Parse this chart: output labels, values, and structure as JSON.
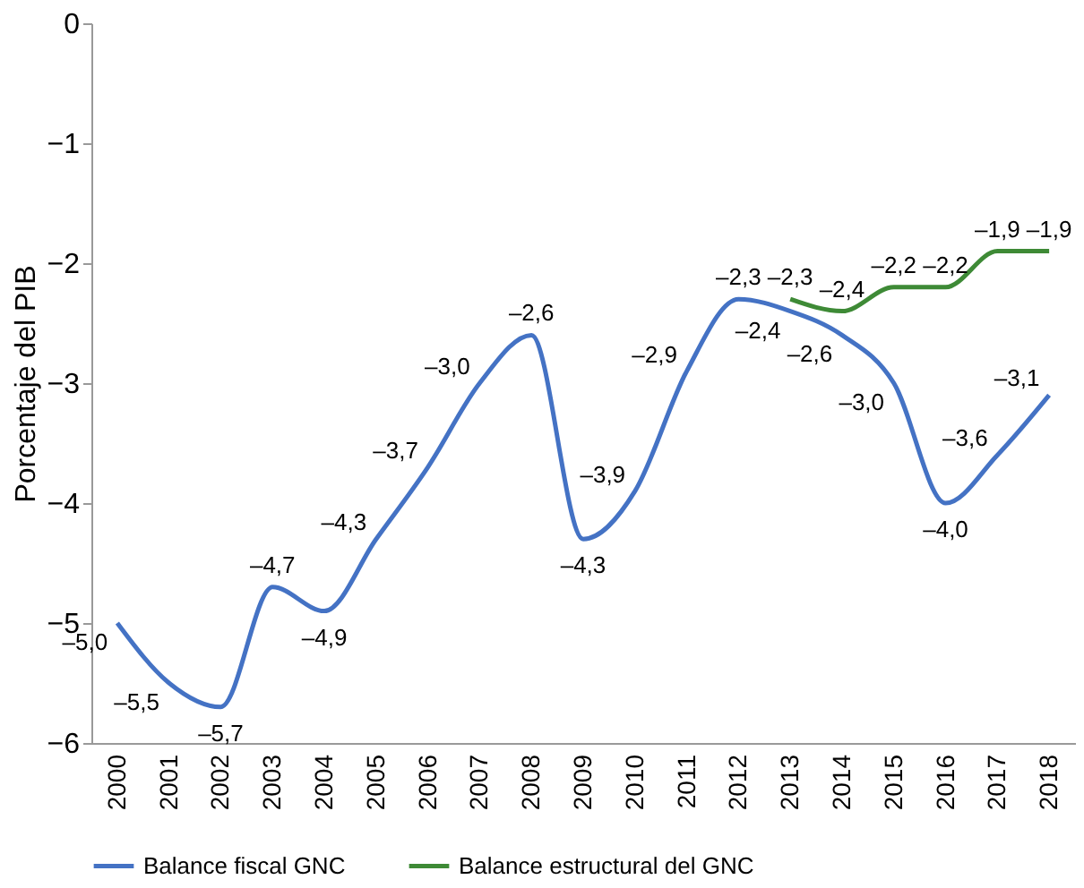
{
  "chart_data": {
    "type": "line",
    "ylabel": "Porcentaje del PIB",
    "categories": [
      "2000",
      "2001",
      "2002",
      "2003",
      "2004",
      "2005",
      "2006",
      "2007",
      "2008",
      "2009",
      "2010",
      "2011",
      "2012",
      "2013",
      "2014",
      "2015",
      "2016",
      "2017",
      "2018"
    ],
    "series": [
      {
        "name": "Balance fiscal GNC",
        "color": "#4472c4",
        "values": [
          -5.0,
          -5.5,
          -5.7,
          -4.7,
          -4.9,
          -4.3,
          -3.7,
          -3.0,
          -2.6,
          -4.3,
          -3.9,
          -2.9,
          -2.3,
          -2.4,
          -2.6,
          -3.0,
          -4.0,
          -3.6,
          -3.1
        ],
        "value_labels": [
          "–5,0",
          "–5,5",
          "–5,7",
          "–4,7",
          "–4,9",
          "–4,3",
          "–3,7",
          "–3,0",
          "–2,6",
          "–4,3",
          "–3,9",
          "–2,9",
          "–2,3",
          "–2,4",
          "–2,6",
          "–3,0",
          "–4,0",
          "–3,6",
          "–3,1"
        ]
      },
      {
        "name": "Balance estructural del GNC",
        "color": "#3e8a36",
        "values": [
          null,
          null,
          null,
          null,
          null,
          null,
          null,
          null,
          null,
          null,
          null,
          null,
          null,
          -2.3,
          -2.4,
          -2.2,
          -2.2,
          -1.9,
          -1.9
        ],
        "value_labels": [
          null,
          null,
          null,
          null,
          null,
          null,
          null,
          null,
          null,
          null,
          null,
          null,
          null,
          "–2,3",
          "–2,4",
          "–2,2",
          "–2,2",
          "–1,9",
          "–1,9"
        ]
      }
    ],
    "ylim": [
      -6,
      0
    ],
    "yticks": [
      -6,
      -5,
      -4,
      -3,
      -2,
      -1,
      0
    ],
    "grid": false,
    "legend": "bottom",
    "marker": "none",
    "line_style": "solid"
  }
}
